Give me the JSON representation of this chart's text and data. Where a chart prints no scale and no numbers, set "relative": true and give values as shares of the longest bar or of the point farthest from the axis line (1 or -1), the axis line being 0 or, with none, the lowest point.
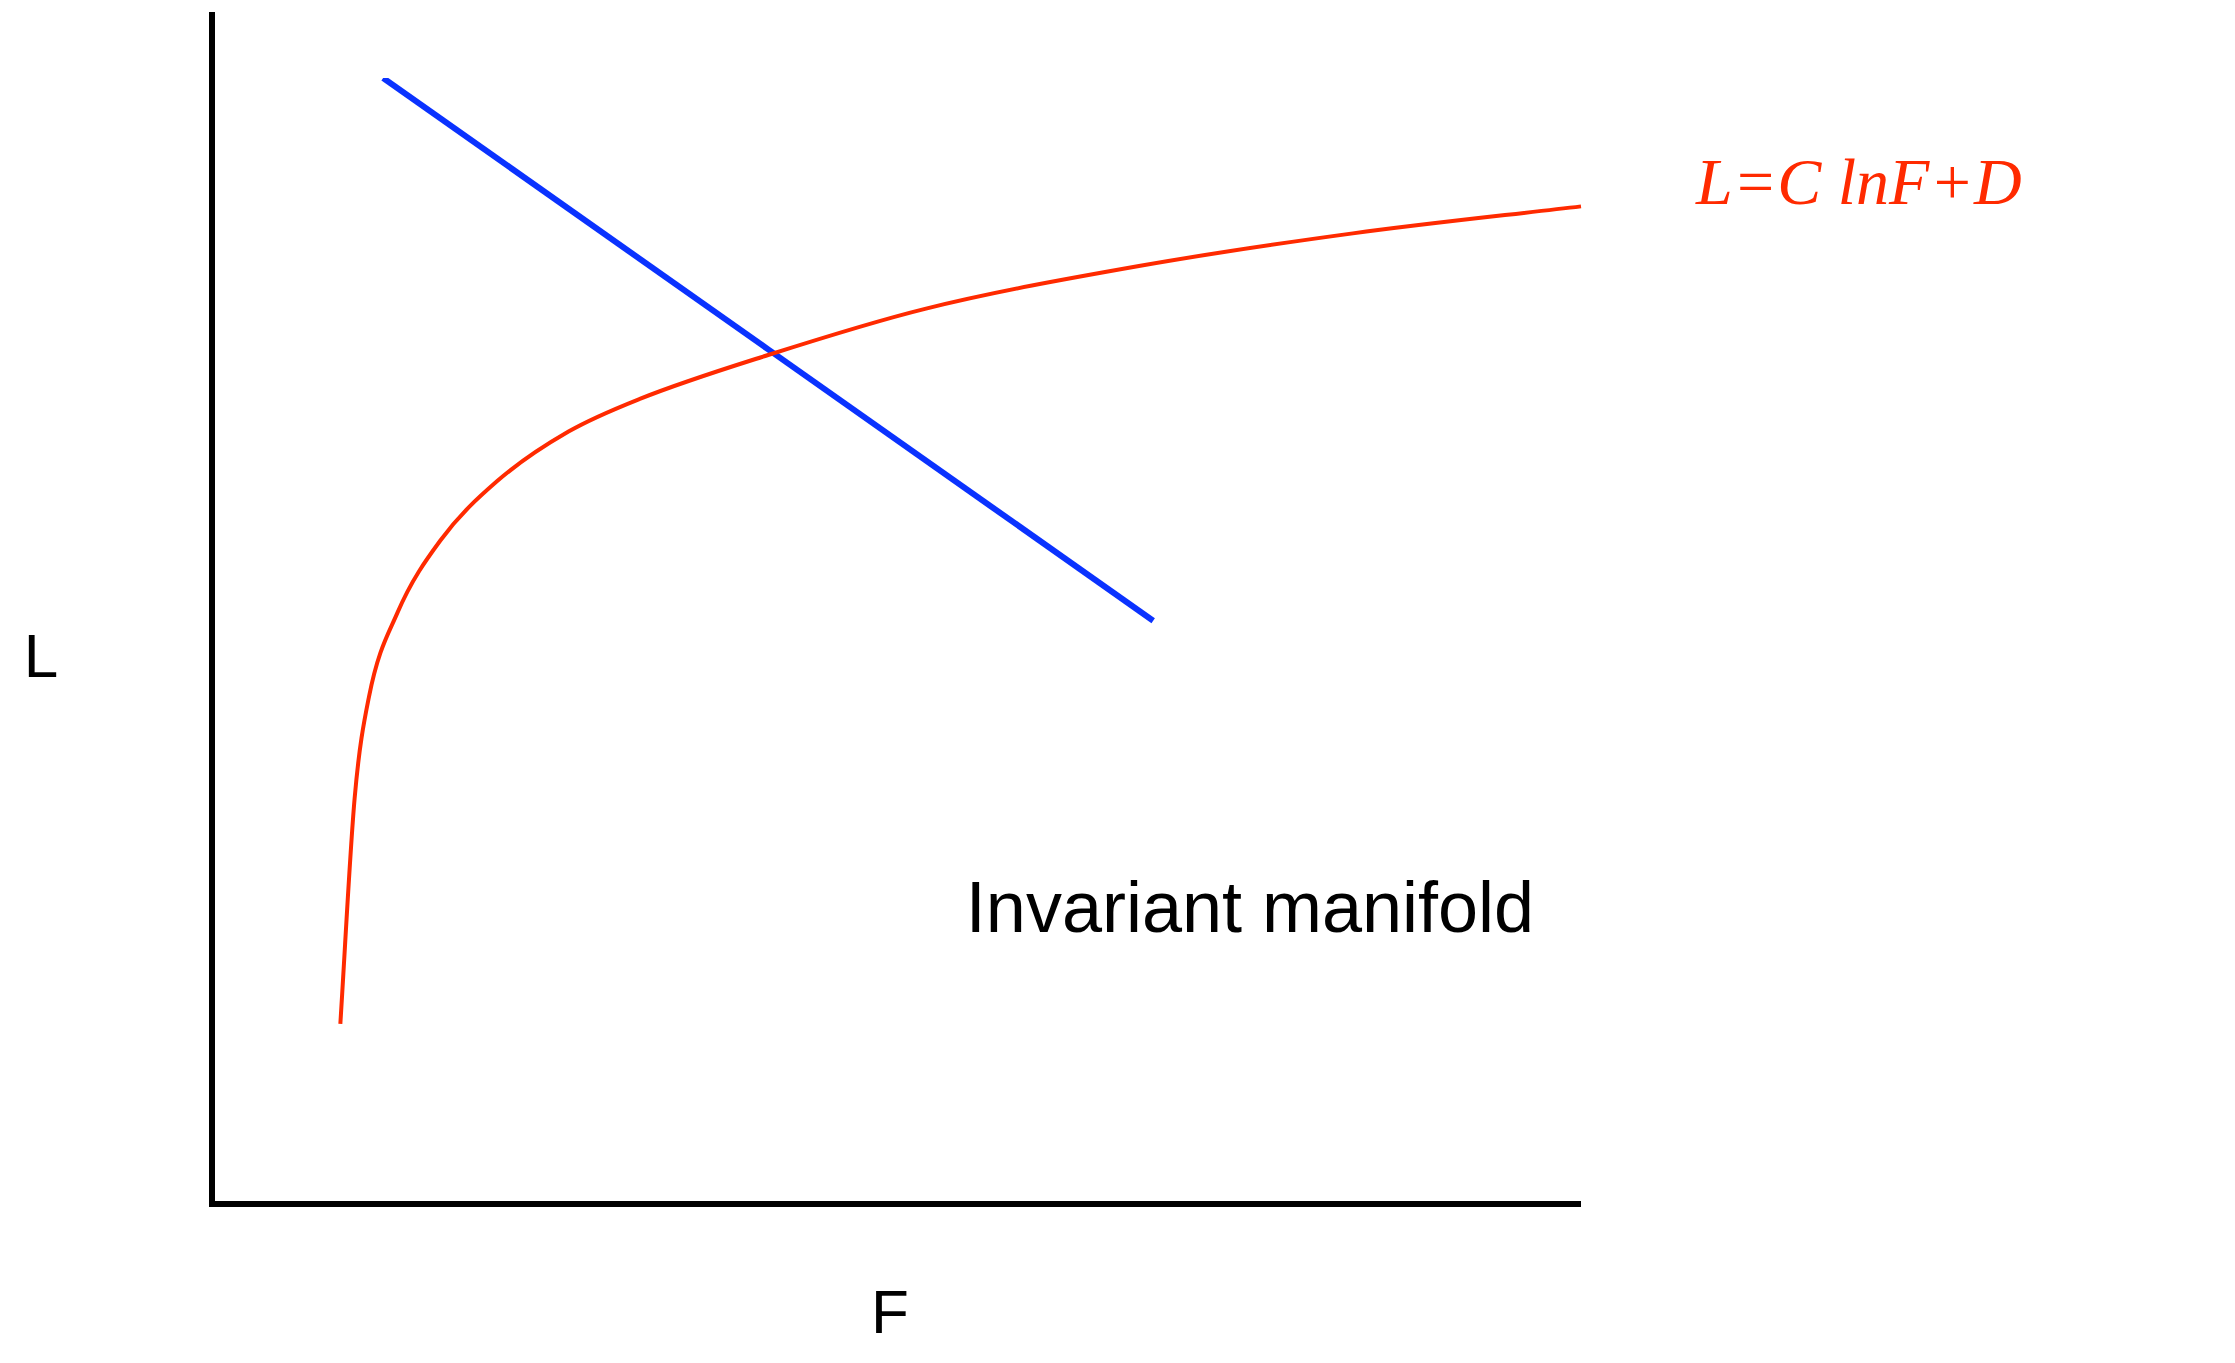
{
  "chart_data": {
    "type": "line",
    "relative": true,
    "xlabel": "F",
    "ylabel": "L",
    "categories": [
      null,
      null,
      null,
      null,
      null,
      null,
      null,
      null,
      null,
      null,
      null,
      null,
      null,
      null,
      null,
      null,
      null,
      null,
      null,
      null,
      null,
      null,
      null,
      null,
      null,
      null,
      null,
      null,
      null,
      null,
      null,
      null,
      null,
      null,
      null,
      null,
      null,
      null,
      null,
      null,
      null,
      null,
      null,
      null,
      null,
      null,
      null,
      null,
      null,
      null,
      null,
      null,
      null,
      null,
      null,
      null,
      null,
      null,
      null,
      null,
      null,
      null,
      null,
      null,
      null,
      null,
      null,
      null,
      null,
      null,
      null,
      null,
      null,
      null,
      null,
      null,
      null,
      null,
      null,
      null,
      null,
      null,
      null,
      null,
      null,
      null,
      null,
      null,
      null,
      null,
      null,
      null,
      null,
      null,
      null,
      null,
      null
    ],
    "series": [
      {
        "name": "L=C lnF+D",
        "color": "#ff2a00",
        "values": [
          null,
          null,
          null,
          null,
          null,
          null,
          null,
          null,
          null,
          0.16,
          0.36,
          0.45,
          null,
          0.525,
          null,
          null,
          0.589,
          null,
          null,
          null,
          0.642,
          null,
          null,
          null,
          null,
          0.686,
          null,
          null,
          null,
          null,
          0.715,
          null,
          null,
          null,
          null,
          null,
          null,
          null,
          null,
          0.754,
          null,
          null,
          null,
          null,
          null,
          null,
          null,
          null,
          null,
          null,
          0.795,
          null,
          null,
          null,
          null,
          null,
          null,
          null,
          null,
          null,
          null,
          null,
          null,
          null,
          null,
          0.833,
          null,
          null,
          null,
          null,
          null,
          null,
          null,
          null,
          null,
          null,
          null,
          null,
          null,
          null,
          0.862,
          null,
          null,
          null,
          null,
          null,
          null,
          null,
          null,
          null,
          null,
          null,
          null,
          null,
          null,
          null,
          0.886
        ]
      },
      {
        "color": "#0a32ff",
        "values": [
          null,
          null,
          null,
          null,
          null,
          null,
          null,
          null,
          null,
          null,
          null,
          null,
          1.0,
          null,
          null,
          null,
          null,
          null,
          null,
          null,
          null,
          null,
          null,
          null,
          null,
          null,
          null,
          null,
          null,
          null,
          null,
          null,
          null,
          null,
          null,
          null,
          null,
          null,
          null,
          null,
          null,
          null,
          null,
          null,
          null,
          null,
          null,
          null,
          null,
          null,
          null,
          null,
          null,
          null,
          null,
          null,
          null,
          null,
          null,
          null,
          null,
          null,
          null,
          null,
          null,
          null,
          0.518,
          null,
          null,
          null,
          null,
          null,
          null,
          null,
          null,
          null,
          null,
          null,
          null,
          null,
          null,
          null,
          null,
          null,
          null,
          null,
          null,
          null,
          null,
          null,
          null,
          null,
          null,
          null,
          null,
          null,
          null
        ]
      }
    ],
    "annotations": [
      "Invariant manifold"
    ]
  }
}
